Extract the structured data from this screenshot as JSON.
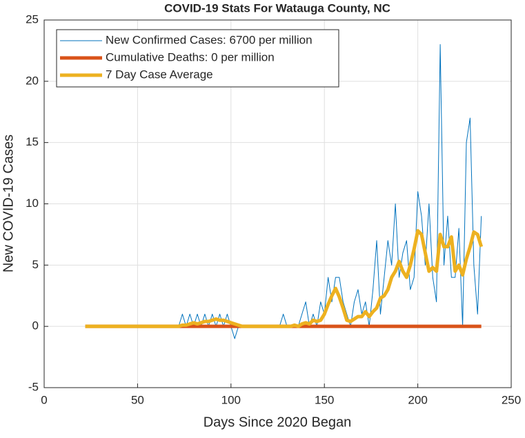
{
  "chart_data": {
    "type": "line",
    "title": "COVID-19 Stats For Watauga County, NC",
    "xlabel": "Days Since 2020 Began",
    "ylabel": "New COVID-19 Cases",
    "xlim": [
      0,
      250
    ],
    "xticks": [
      0,
      50,
      100,
      150,
      200,
      250
    ],
    "ylim": [
      -5,
      25
    ],
    "yticks": [
      -5,
      0,
      5,
      10,
      15,
      20,
      25
    ],
    "grid": true,
    "legend_location": "northwest",
    "x": [
      22,
      72,
      74,
      76,
      78,
      80,
      82,
      84,
      86,
      88,
      90,
      92,
      94,
      96,
      98,
      100,
      102,
      104,
      106,
      108,
      110,
      112,
      114,
      116,
      118,
      120,
      122,
      124,
      126,
      128,
      130,
      132,
      134,
      136,
      138,
      140,
      142,
      144,
      146,
      148,
      150,
      152,
      154,
      156,
      158,
      160,
      162,
      164,
      166,
      168,
      170,
      172,
      174,
      176,
      178,
      180,
      182,
      184,
      186,
      188,
      190,
      192,
      194,
      196,
      198,
      200,
      202,
      204,
      206,
      208,
      210,
      212,
      214,
      216,
      218,
      220,
      222,
      224,
      226,
      228,
      230,
      232,
      234
    ],
    "series": [
      {
        "name": "New Confirmed Cases: 6700 per million",
        "color": "#0072bd",
        "width": 1,
        "values": [
          0,
          0,
          1,
          0,
          1,
          0,
          1,
          0,
          1,
          0,
          1,
          0,
          1,
          0,
          1,
          0,
          -1,
          0,
          0,
          0,
          0,
          0,
          0,
          0,
          0,
          0,
          0,
          0,
          0,
          1,
          0,
          0,
          0,
          0,
          1,
          2,
          0,
          1,
          0,
          2,
          1,
          4,
          2,
          4,
          4,
          2,
          1,
          0,
          2,
          3,
          1,
          2,
          0,
          3,
          7,
          1,
          4,
          7,
          5,
          10,
          4,
          6,
          7,
          3,
          4,
          11,
          9,
          5,
          10,
          4,
          2,
          23,
          5,
          9,
          4,
          4,
          8,
          0,
          15,
          17,
          5,
          1,
          9
        ]
      },
      {
        "name": "Cumulative Deaths: 0 per million",
        "color": "#d95319",
        "width": 5,
        "values": [
          0,
          0,
          0,
          0,
          0,
          0,
          0,
          0,
          0,
          0,
          0,
          0,
          0,
          0,
          0,
          0,
          0,
          0,
          0,
          0,
          0,
          0,
          0,
          0,
          0,
          0,
          0,
          0,
          0,
          0,
          0,
          0,
          0,
          0,
          0,
          0,
          0,
          0,
          0,
          0,
          0,
          0,
          0,
          0,
          0,
          0,
          0,
          0,
          0,
          0,
          0,
          0,
          0,
          0,
          0,
          0,
          0,
          0,
          0,
          0,
          0,
          0,
          0,
          0,
          0,
          0,
          0,
          0,
          0,
          0,
          0,
          0,
          0,
          0,
          0,
          0,
          0,
          0,
          0,
          0,
          0,
          0,
          0
        ]
      },
      {
        "name": "7 Day Case Average",
        "color": "#edb120",
        "width": 5,
        "values": [
          0,
          0,
          0.1,
          0.1,
          0.2,
          0.3,
          0.2,
          0.3,
          0.4,
          0.4,
          0.5,
          0.6,
          0.5,
          0.5,
          0.4,
          0.3,
          0.2,
          0.1,
          0,
          0,
          0,
          0,
          0,
          0,
          0,
          0,
          0,
          0,
          0,
          0,
          0,
          0,
          0.1,
          0,
          0.2,
          0.3,
          0.2,
          0.5,
          0.4,
          0.5,
          1,
          1.8,
          2.5,
          3.1,
          2.4,
          1.5,
          0.5,
          0.4,
          0.6,
          0.8,
          0.8,
          1.2,
          0.8,
          1.2,
          1.5,
          2.3,
          2.5,
          3,
          4,
          4.5,
          5.3,
          4.5,
          4,
          5,
          6.3,
          7.8,
          7.5,
          6,
          4.5,
          4.8,
          4.5,
          7.5,
          6.5,
          6.5,
          7.3,
          4.5,
          5,
          4.2,
          5.5,
          6.5,
          7.7,
          7.5,
          6.5
        ]
      }
    ]
  }
}
